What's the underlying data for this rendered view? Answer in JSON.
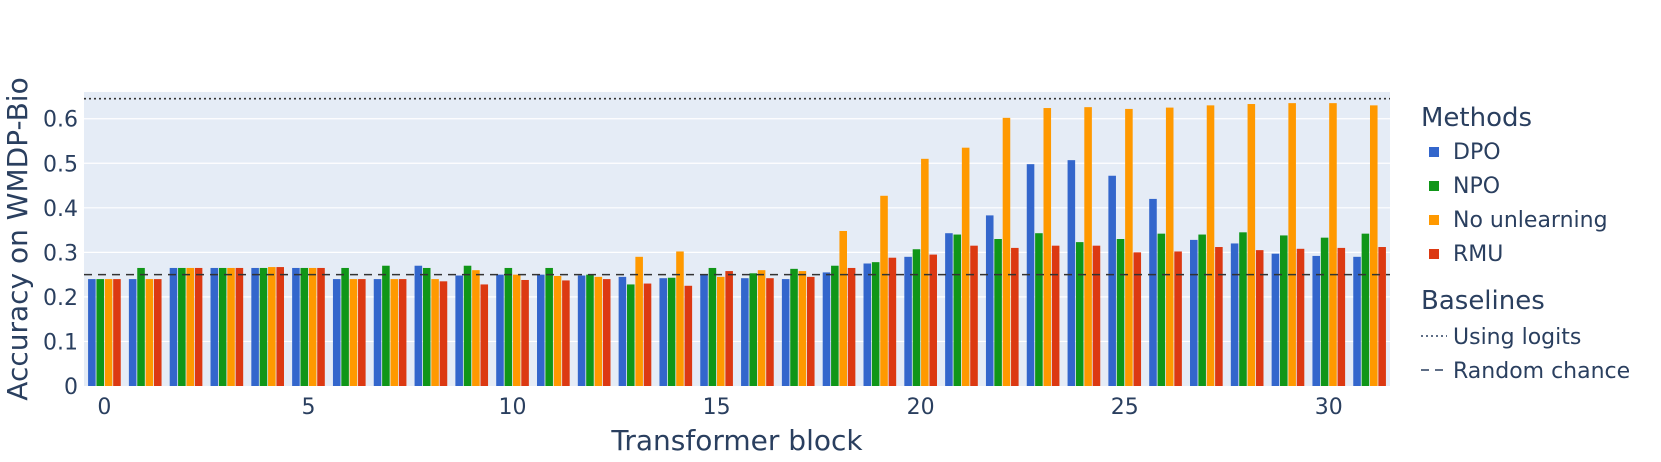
{
  "chart_data": {
    "type": "bar",
    "xlabel": "Transformer block",
    "ylabel": "Accuracy on WMDP-Bio",
    "x_tick_labels": [
      "0",
      "5",
      "10",
      "15",
      "20",
      "25",
      "30"
    ],
    "y_tick_labels": [
      "0",
      "0.1",
      "0.2",
      "0.3",
      "0.4",
      "0.5",
      "0.6"
    ],
    "ylim": [
      0,
      0.66
    ],
    "grid": true,
    "legend_position": "right",
    "categories": [
      0,
      1,
      2,
      3,
      4,
      5,
      6,
      7,
      8,
      9,
      10,
      11,
      12,
      13,
      14,
      15,
      16,
      17,
      18,
      19,
      20,
      21,
      22,
      23,
      24,
      25,
      26,
      27,
      28,
      29,
      30,
      31
    ],
    "legend_title": "Methods",
    "series": [
      {
        "name": "DPO",
        "color": "#3366cc",
        "values": [
          0.24,
          0.24,
          0.265,
          0.265,
          0.265,
          0.265,
          0.24,
          0.24,
          0.27,
          0.248,
          0.25,
          0.25,
          0.248,
          0.245,
          0.242,
          0.25,
          0.242,
          0.24,
          0.255,
          0.275,
          0.29,
          0.343,
          0.383,
          0.498,
          0.507,
          0.472,
          0.42,
          0.328,
          0.32,
          0.297,
          0.292,
          0.29
        ]
      },
      {
        "name": "NPO",
        "color": "#109618",
        "values": [
          0.24,
          0.265,
          0.265,
          0.265,
          0.265,
          0.265,
          0.265,
          0.27,
          0.265,
          0.27,
          0.265,
          0.265,
          0.25,
          0.228,
          0.243,
          0.265,
          0.253,
          0.263,
          0.27,
          0.278,
          0.307,
          0.34,
          0.33,
          0.343,
          0.323,
          0.33,
          0.342,
          0.34,
          0.345,
          0.338,
          0.333,
          0.342
        ]
      },
      {
        "name": "No unlearning",
        "color": "#ff9900",
        "values": [
          0.24,
          0.24,
          0.265,
          0.265,
          0.267,
          0.265,
          0.24,
          0.24,
          0.24,
          0.26,
          0.25,
          0.247,
          0.245,
          0.29,
          0.302,
          0.245,
          0.26,
          0.258,
          0.348,
          0.427,
          0.51,
          0.535,
          0.602,
          0.624,
          0.626,
          0.622,
          0.625,
          0.63,
          0.633,
          0.635,
          0.635,
          0.63
        ]
      },
      {
        "name": "RMU",
        "color": "#dc3912",
        "values": [
          0.24,
          0.24,
          0.265,
          0.265,
          0.267,
          0.265,
          0.24,
          0.24,
          0.235,
          0.228,
          0.238,
          0.237,
          0.24,
          0.23,
          0.225,
          0.258,
          0.242,
          0.245,
          0.265,
          0.288,
          0.295,
          0.315,
          0.31,
          0.315,
          0.315,
          0.3,
          0.302,
          0.312,
          0.305,
          0.308,
          0.31,
          0.312
        ]
      }
    ],
    "baselines_title": "Baselines",
    "baselines": [
      {
        "name": "Using logits",
        "value": 0.645,
        "dash": "dotted"
      },
      {
        "name": "Random chance",
        "value": 0.25,
        "dash": "dashed"
      }
    ]
  }
}
